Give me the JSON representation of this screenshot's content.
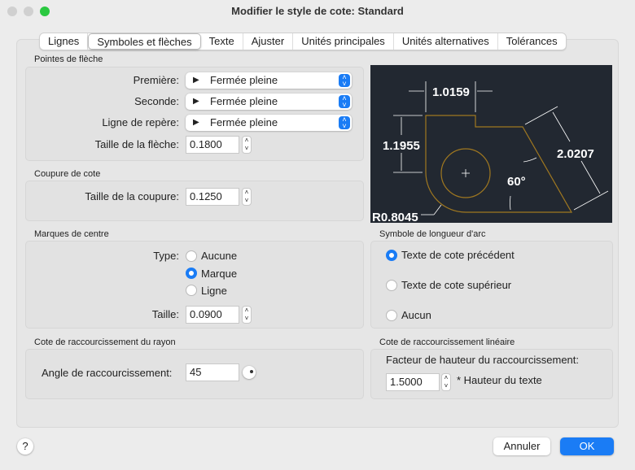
{
  "window": {
    "title": "Modifier le style de cote: Standard"
  },
  "tabs": [
    {
      "label": "Lignes"
    },
    {
      "label": "Symboles et flèches",
      "active": true
    },
    {
      "label": "Texte"
    },
    {
      "label": "Ajuster"
    },
    {
      "label": "Unités principales"
    },
    {
      "label": "Unités alternatives"
    },
    {
      "label": "Tolérances"
    }
  ],
  "arrowheads": {
    "title": "Pointes de flèche",
    "first_label": "Première:",
    "first_value": "Fermée pleine",
    "second_label": "Seconde:",
    "second_value": "Fermée pleine",
    "leader_label": "Ligne de repère:",
    "leader_value": "Fermée pleine",
    "size_label": "Taille de la flèche:",
    "size_value": "0.1800"
  },
  "break": {
    "title": "Coupure de cote",
    "size_label": "Taille de la coupure:",
    "size_value": "0.1250"
  },
  "center": {
    "title": "Marques de centre",
    "type_label": "Type:",
    "options": [
      "Aucune",
      "Marque",
      "Ligne"
    ],
    "selected": "Marque",
    "size_label": "Taille:",
    "size_value": "0.0900"
  },
  "radius_jog": {
    "title": "Cote de raccourcissement du rayon",
    "angle_label": "Angle de raccourcissement:",
    "angle_value": "45"
  },
  "arc_symbol": {
    "title": "Symbole de longueur d'arc",
    "options": [
      "Texte de cote précédent",
      "Texte de cote supérieur",
      "Aucun"
    ],
    "selected": "Texte de cote précédent"
  },
  "linear_jog": {
    "title": "Cote de raccourcissement linéaire",
    "factor_label": "Facteur de hauteur du raccourcissement:",
    "factor_value": "1.5000",
    "suffix": "* Hauteur du texte"
  },
  "preview": {
    "dim_top": "1.0159",
    "dim_left": "1.1955",
    "dim_right": "2.0207",
    "angle": "60°",
    "radius": "R0.8045",
    "bg": "#222831",
    "shape_color": "#a07820"
  },
  "footer": {
    "help": "?",
    "cancel": "Annuler",
    "ok": "OK"
  },
  "colors": {
    "accent": "#1a7cf5"
  }
}
